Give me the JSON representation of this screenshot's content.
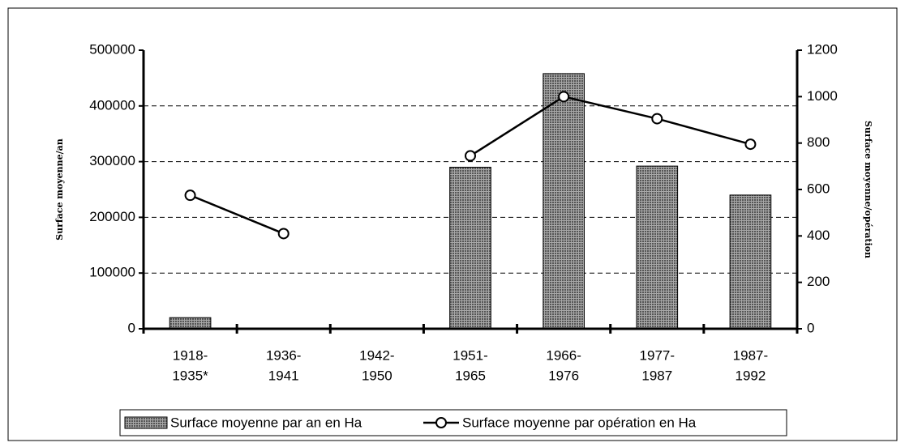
{
  "chart_data": {
    "type": "bar_line",
    "categories": [
      [
        "1918-",
        "1935*"
      ],
      [
        "1936-",
        "1941"
      ],
      [
        "1942-",
        "1950"
      ],
      [
        "1951-",
        "1965"
      ],
      [
        "1966-",
        "1976"
      ],
      [
        "1977-",
        "1987"
      ],
      [
        "1987-",
        "1992"
      ]
    ],
    "series": [
      {
        "name": "Surface moyenne par an en Ha",
        "type": "bar",
        "color": "#a8a8a8",
        "values": [
          20000,
          null,
          null,
          290000,
          458000,
          292000,
          240000
        ]
      },
      {
        "name": "Surface moyenne par opération en Ha",
        "type": "line",
        "axis": "y2",
        "color": "#000000",
        "values": [
          575,
          410,
          null,
          745,
          1000,
          905,
          795
        ]
      }
    ],
    "ylabel": "Surface moyenne/an",
    "y2label": "Surface moyenne/opération",
    "ylim": [
      0,
      500000
    ],
    "yticks": [
      0,
      100000,
      200000,
      300000,
      400000,
      500000
    ],
    "y2lim": [
      0,
      1200
    ],
    "y2ticks": [
      0,
      200,
      400,
      600,
      800,
      1000,
      1200
    ],
    "grid": true,
    "legend": "bottom"
  }
}
